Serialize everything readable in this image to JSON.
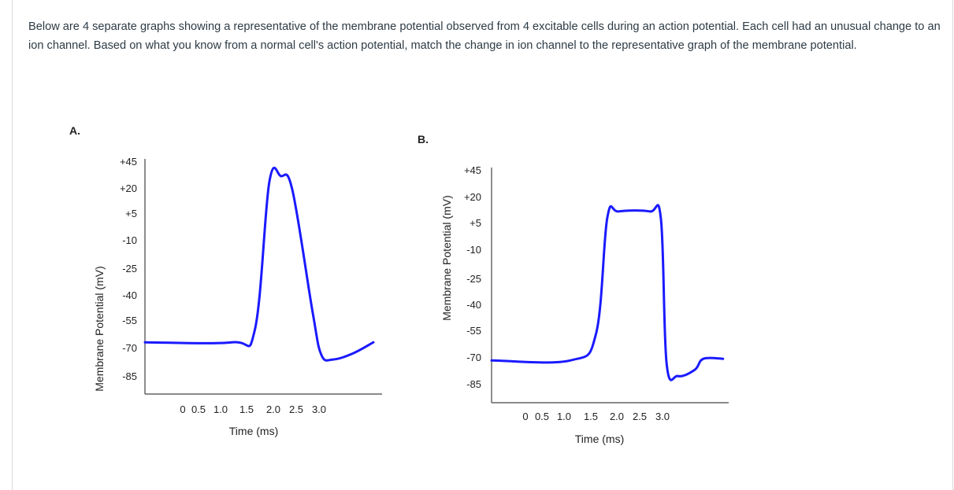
{
  "question": {
    "text": "Below are 4 separate graphs showing a representative of the membrane potential observed from 4 excitable cells during an action potential. Each cell had an unusual change to an ion channel.  Based on what you know from a normal cell's action potential, match the change in ion channel to the representative graph of the membrane potential."
  },
  "chart_data": [
    {
      "type": "line",
      "panel_label": "A.",
      "xlabel": "Time (ms)",
      "ylabel": "Membrane Potential (mV)",
      "x_ticks": [
        "0",
        "0.5",
        "1.0",
        "1.5",
        "2.0",
        "2.5",
        "3.0"
      ],
      "y_ticks": [
        "+45",
        "+20",
        "+5",
        "-10",
        "-25",
        "-40",
        "-55",
        "-70",
        "-85"
      ],
      "xlim": [
        -0.6,
        3.5
      ],
      "ylim": [
        -95,
        55
      ],
      "color": "#1a1aff",
      "series": [
        {
          "x": [
            -0.6,
            0.9,
            1.3,
            1.55,
            1.75,
            1.95,
            2.3,
            2.45,
            2.65,
            3.0,
            3.35
          ],
          "y": [
            -62,
            -62,
            -54,
            40,
            44,
            35,
            -43,
            -70,
            -73,
            -69,
            -62
          ]
        }
      ]
    },
    {
      "type": "line",
      "panel_label": "B.",
      "xlabel": "Time (ms)",
      "ylabel": "Membrane Potential (mV)",
      "x_ticks": [
        "0",
        "0.5",
        "1.0",
        "1.5",
        "2.0",
        "2.5",
        "3.0"
      ],
      "y_ticks": [
        "+45",
        "+20",
        "+5",
        "-10",
        "-25",
        "-40",
        "-55",
        "-70",
        "-85"
      ],
      "xlim": [
        -0.6,
        3.6
      ],
      "ylim": [
        -95,
        55
      ],
      "color": "#1a1aff",
      "series": [
        {
          "x": [
            -0.6,
            0.8,
            1.25,
            1.45,
            1.65,
            2.2,
            2.4,
            2.5,
            2.7,
            3.0,
            3.15,
            3.5
          ],
          "y": [
            -68,
            -68,
            -51,
            23,
            27,
            27,
            22,
            -70,
            -78,
            -74,
            -67,
            -67
          ]
        }
      ]
    }
  ]
}
